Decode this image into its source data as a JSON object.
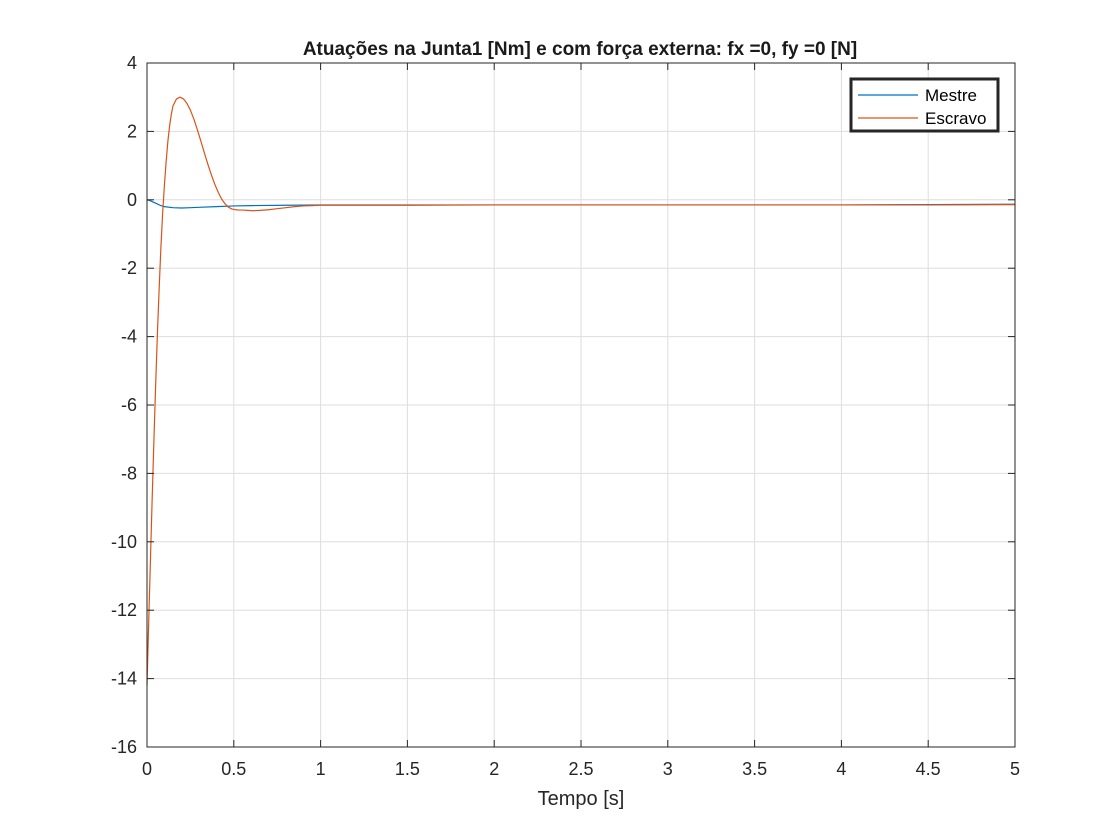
{
  "chart_data": {
    "type": "line",
    "title": "Atuações na Junta1 [Nm] e com força externa: fx =0, fy =0 [N]",
    "xlabel": "Tempo [s]",
    "ylabel": "",
    "xlim": [
      0,
      5
    ],
    "ylim": [
      -16,
      4
    ],
    "xticks": [
      0,
      0.5,
      1,
      1.5,
      2,
      2.5,
      3,
      3.5,
      4,
      4.5,
      5
    ],
    "xtick_labels": [
      "0",
      "0.5",
      "1",
      "1.5",
      "2",
      "2.5",
      "3",
      "3.5",
      "4",
      "4.5",
      "5"
    ],
    "yticks": [
      -16,
      -14,
      -12,
      -10,
      -8,
      -6,
      -4,
      -2,
      0,
      2,
      4
    ],
    "ytick_labels": [
      "-16",
      "-14",
      "-12",
      "-10",
      "-8",
      "-6",
      "-4",
      "-2",
      "0",
      "2",
      "4"
    ],
    "grid": true,
    "legend_position": "top-right",
    "series": [
      {
        "name": "Mestre",
        "color": "#0072BD",
        "x": [
          0,
          0.02,
          0.05,
          0.08,
          0.1,
          0.15,
          0.2,
          0.25,
          0.3,
          0.4,
          0.5,
          0.6,
          0.8,
          1.0,
          1.5,
          2.0,
          2.5,
          3.0,
          3.5,
          4.0,
          4.5,
          5.0
        ],
        "y": [
          0.0,
          -0.03,
          -0.1,
          -0.17,
          -0.2,
          -0.23,
          -0.24,
          -0.23,
          -0.22,
          -0.2,
          -0.18,
          -0.17,
          -0.16,
          -0.15,
          -0.15,
          -0.15,
          -0.15,
          -0.15,
          -0.15,
          -0.15,
          -0.14,
          -0.13
        ]
      },
      {
        "name": "Escravo",
        "color": "#D95319",
        "x": [
          0,
          0.01,
          0.02,
          0.03,
          0.04,
          0.05,
          0.06,
          0.07,
          0.08,
          0.09,
          0.1,
          0.11,
          0.12,
          0.13,
          0.14,
          0.15,
          0.17,
          0.19,
          0.21,
          0.23,
          0.25,
          0.27,
          0.29,
          0.31,
          0.33,
          0.35,
          0.37,
          0.39,
          0.41,
          0.43,
          0.45,
          0.47,
          0.49,
          0.51,
          0.53,
          0.55,
          0.58,
          0.61,
          0.65,
          0.7,
          0.75,
          0.8,
          0.85,
          0.9,
          0.95,
          1.0,
          1.5,
          2.0,
          2.5,
          3.0,
          3.5,
          4.0,
          4.5,
          5.0
        ],
        "y": [
          -14.2,
          -12.3,
          -10.5,
          -8.7,
          -7.0,
          -5.4,
          -3.9,
          -2.6,
          -1.4,
          -0.4,
          0.4,
          1.1,
          1.7,
          2.15,
          2.5,
          2.75,
          2.95,
          3.0,
          2.95,
          2.82,
          2.62,
          2.36,
          2.05,
          1.72,
          1.38,
          1.05,
          0.74,
          0.46,
          0.22,
          0.02,
          -0.12,
          -0.22,
          -0.27,
          -0.29,
          -0.3,
          -0.3,
          -0.31,
          -0.32,
          -0.31,
          -0.29,
          -0.26,
          -0.23,
          -0.2,
          -0.18,
          -0.17,
          -0.16,
          -0.16,
          -0.15,
          -0.15,
          -0.15,
          -0.15,
          -0.15,
          -0.15,
          -0.14
        ]
      }
    ]
  }
}
